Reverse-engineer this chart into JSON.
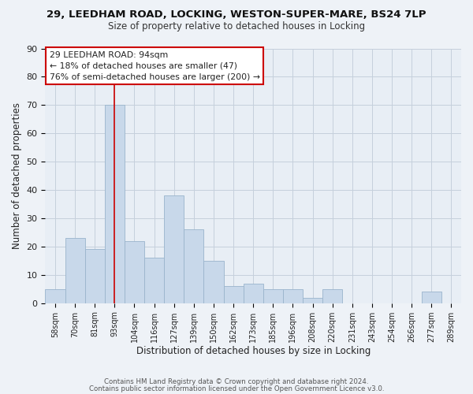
{
  "title_line1": "29, LEEDHAM ROAD, LOCKING, WESTON-SUPER-MARE, BS24 7LP",
  "title_line2": "Size of property relative to detached houses in Locking",
  "xlabel": "Distribution of detached houses by size in Locking",
  "ylabel": "Number of detached properties",
  "categories": [
    "58sqm",
    "70sqm",
    "81sqm",
    "93sqm",
    "104sqm",
    "116sqm",
    "127sqm",
    "139sqm",
    "150sqm",
    "162sqm",
    "173sqm",
    "185sqm",
    "196sqm",
    "208sqm",
    "220sqm",
    "231sqm",
    "243sqm",
    "254sqm",
    "266sqm",
    "277sqm",
    "289sqm"
  ],
  "values": [
    5,
    23,
    19,
    70,
    22,
    16,
    38,
    26,
    15,
    6,
    7,
    5,
    5,
    2,
    5,
    0,
    0,
    0,
    0,
    4,
    0
  ],
  "bar_color": "#c8d8ea",
  "bar_edge_color": "#9ab4cc",
  "vline_x_index": 3,
  "vline_color": "#cc0000",
  "annotation_text": "29 LEEDHAM ROAD: 94sqm\n← 18% of detached houses are smaller (47)\n76% of semi-detached houses are larger (200) →",
  "annotation_box_edge": "#cc0000",
  "annotation_box_face": "#ffffff",
  "ylim": [
    0,
    90
  ],
  "yticks": [
    0,
    10,
    20,
    30,
    40,
    50,
    60,
    70,
    80,
    90
  ],
  "footer_line1": "Contains HM Land Registry data © Crown copyright and database right 2024.",
  "footer_line2": "Contains public sector information licensed under the Open Government Licence v3.0.",
  "bg_color": "#eef2f7",
  "plot_bg_color": "#e8eef5",
  "grid_color": "#c5d0dc"
}
